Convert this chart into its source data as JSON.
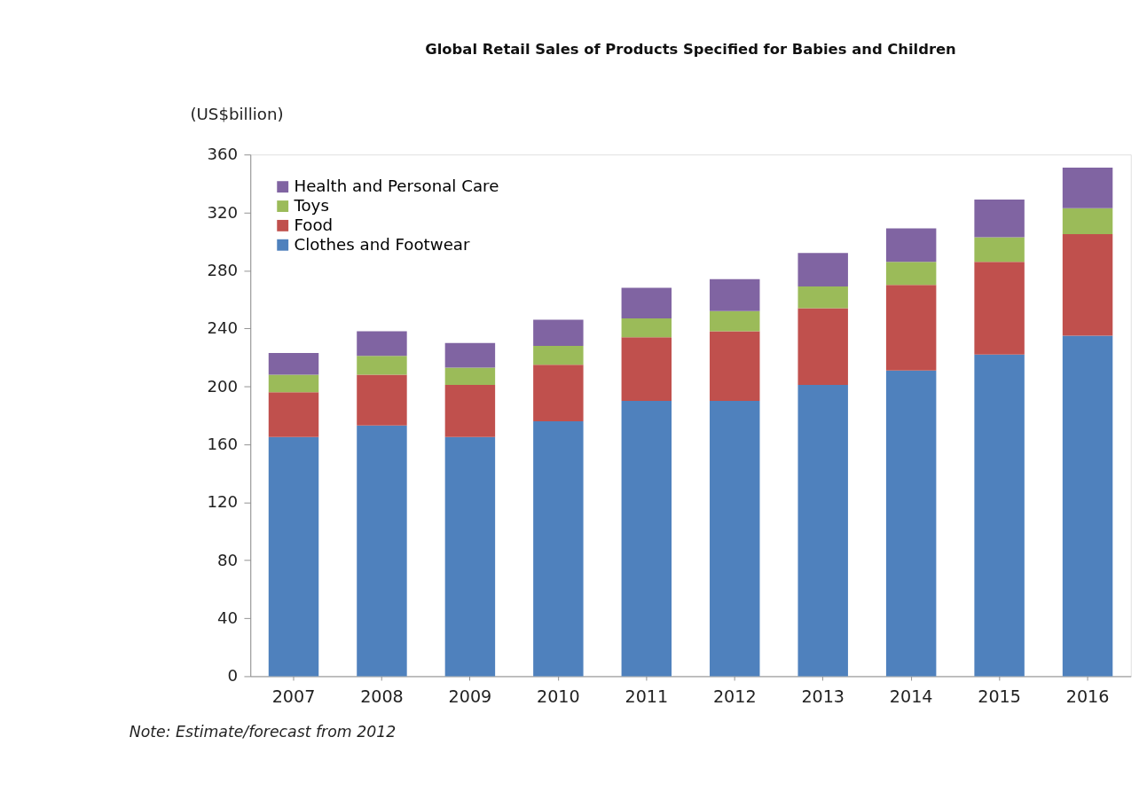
{
  "chart_data": {
    "type": "bar",
    "stacked": true,
    "title": "Global Retail Sales of Products Specified for Babies and Children",
    "ylabel": "(US$billion)",
    "categories": [
      "2007",
      "2008",
      "2009",
      "2010",
      "2011",
      "2012",
      "2013",
      "2014",
      "2015",
      "2016"
    ],
    "series": [
      {
        "name": "Clothes and Footwear",
        "color": "#4f81bd",
        "values": [
          165,
          173,
          165,
          176,
          190,
          190,
          201,
          211,
          222,
          235
        ]
      },
      {
        "name": "Food",
        "color": "#c0504d",
        "values": [
          31,
          35,
          36,
          39,
          44,
          48,
          53,
          59,
          64,
          70
        ]
      },
      {
        "name": "Toys",
        "color": "#9bbb59",
        "values": [
          12,
          13,
          12,
          13,
          13,
          14,
          15,
          16,
          17,
          18
        ]
      },
      {
        "name": "Health and Personal Care",
        "color": "#8064a2",
        "values": [
          15,
          17,
          17,
          18,
          21,
          22,
          23,
          23,
          26,
          28
        ]
      }
    ],
    "ylim": [
      0,
      360
    ],
    "yticks": [
      0,
      40,
      80,
      120,
      160,
      200,
      240,
      280,
      320,
      360
    ],
    "grid": false,
    "legend": "top left",
    "annotations": [
      "Note: Estimate/forecast from 2012"
    ]
  }
}
